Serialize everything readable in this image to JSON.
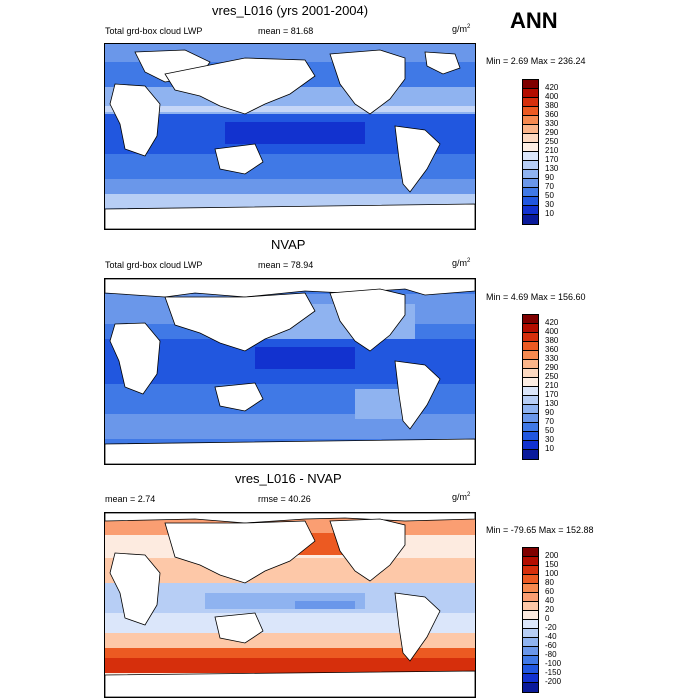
{
  "season": "ANN",
  "panels": [
    {
      "title": "vres_L016 (yrs 2001-2004)",
      "left_label": "Total grd-box cloud LWP",
      "mean_label": "mean =  81.68",
      "units": "g/m",
      "units_exp": "2",
      "minmax": "Min =   2.69 Max = 236.24",
      "colorbar_labels": [
        "420",
        "400",
        "380",
        "360",
        "330",
        "290",
        "250",
        "210",
        "170",
        "130",
        "90",
        "70",
        "50",
        "30",
        "10"
      ],
      "colors": [
        "#7f0000",
        "#b30d00",
        "#d62f0c",
        "#ec5a22",
        "#f68a50",
        "#fbb58a",
        "#fdd9c1",
        "#fdeee4",
        "#dbe6fa",
        "#b7cef5",
        "#8fb3f0",
        "#6a97ea",
        "#4079e6",
        "#2157df",
        "#1232cf",
        "#0a1a9a"
      ]
    },
    {
      "title": "NVAP",
      "left_label": "Total grd-box cloud LWP",
      "mean_label": "mean =  78.94",
      "units": "g/m",
      "units_exp": "2",
      "minmax": "Min =   4.69 Max = 156.60",
      "colorbar_labels": [
        "420",
        "400",
        "380",
        "360",
        "330",
        "290",
        "250",
        "210",
        "170",
        "130",
        "90",
        "70",
        "50",
        "30",
        "10"
      ],
      "colors": [
        "#7f0000",
        "#b30d00",
        "#d62f0c",
        "#ec5a22",
        "#f68a50",
        "#fbb58a",
        "#fdd9c1",
        "#fdeee4",
        "#dbe6fa",
        "#b7cef5",
        "#8fb3f0",
        "#6a97ea",
        "#4079e6",
        "#2157df",
        "#1232cf",
        "#0a1a9a"
      ]
    },
    {
      "title": "vres_L016 - NVAP",
      "left_label": "mean =   2.74",
      "mean_label": "rmse =  40.26",
      "units": "g/m",
      "units_exp": "2",
      "minmax": "Min = -79.65 Max = 152.88",
      "colorbar_labels": [
        "200",
        "150",
        "100",
        "80",
        "60",
        "40",
        "20",
        "0",
        "-20",
        "-40",
        "-60",
        "-80",
        "-100",
        "-150",
        "-200"
      ],
      "colors": [
        "#7f0000",
        "#b30d00",
        "#d62f0c",
        "#ec5a22",
        "#f68a50",
        "#fa9e72",
        "#fdc8a8",
        "#fdebe0",
        "#dbe6fa",
        "#b7cef5",
        "#8fb3f0",
        "#6a97ea",
        "#4079e6",
        "#2157df",
        "#1232cf",
        "#0a1a9a"
      ]
    }
  ]
}
